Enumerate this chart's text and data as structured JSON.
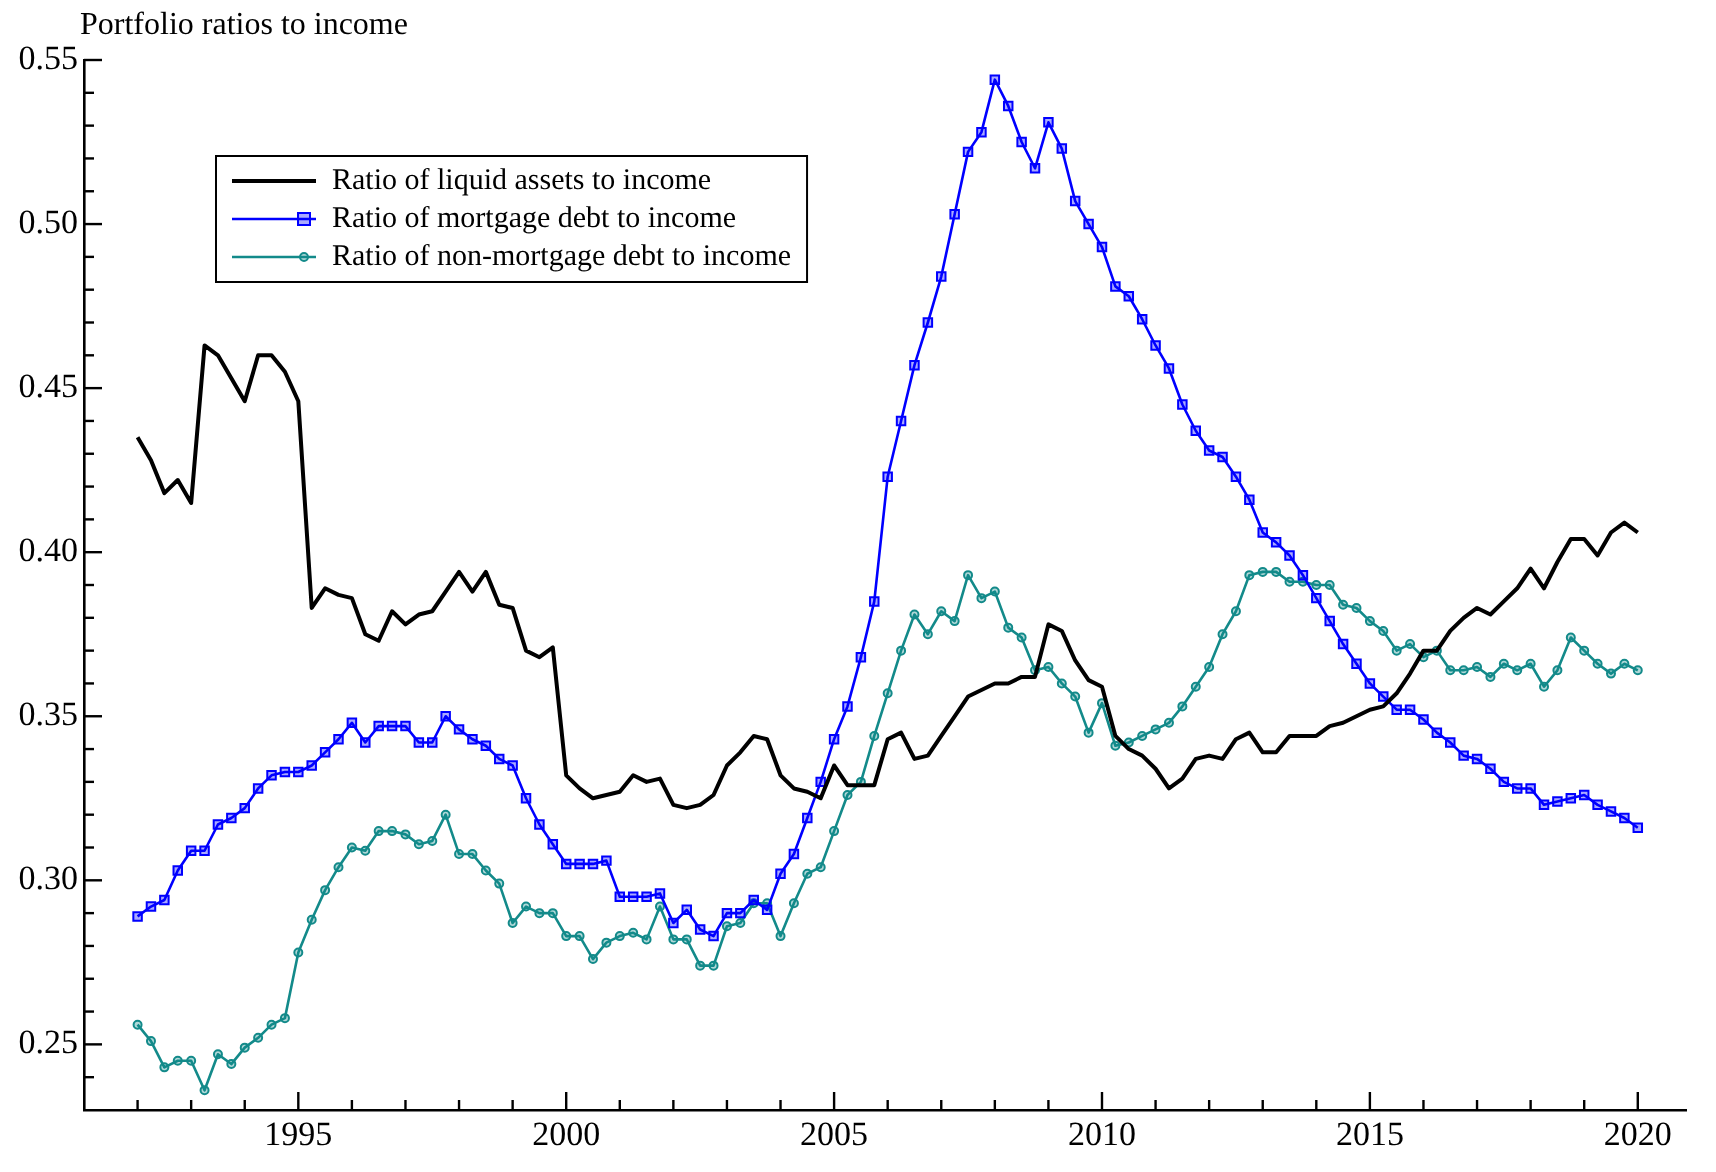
{
  "chart_data": {
    "type": "line",
    "title": "Portfolio ratios to income",
    "x": [
      1992,
      1992.25,
      1992.5,
      1992.75,
      1993,
      1993.25,
      1993.5,
      1993.75,
      1994,
      1994.25,
      1994.5,
      1994.75,
      1995,
      1995.25,
      1995.5,
      1995.75,
      1996,
      1996.25,
      1996.5,
      1996.75,
      1997,
      1997.25,
      1997.5,
      1997.75,
      1998,
      1998.25,
      1998.5,
      1998.75,
      1999,
      1999.25,
      1999.5,
      1999.75,
      2000,
      2000.25,
      2000.5,
      2000.75,
      2001,
      2001.25,
      2001.5,
      2001.75,
      2002,
      2002.25,
      2002.5,
      2002.75,
      2003,
      2003.25,
      2003.5,
      2003.75,
      2004,
      2004.25,
      2004.5,
      2004.75,
      2005,
      2005.25,
      2005.5,
      2005.75,
      2006,
      2006.25,
      2006.5,
      2006.75,
      2007,
      2007.25,
      2007.5,
      2007.75,
      2008,
      2008.25,
      2008.5,
      2008.75,
      2009,
      2009.25,
      2009.5,
      2009.75,
      2010,
      2010.25,
      2010.5,
      2010.75,
      2011,
      2011.25,
      2011.5,
      2011.75,
      2012,
      2012.25,
      2012.5,
      2012.75,
      2013,
      2013.25,
      2013.5,
      2013.75,
      2014,
      2014.25,
      2014.5,
      2014.75,
      2015,
      2015.25,
      2015.5,
      2015.75,
      2016,
      2016.25,
      2016.5,
      2016.75,
      2017,
      2017.25,
      2017.5,
      2017.75,
      2018,
      2018.25,
      2018.5,
      2018.75,
      2019,
      2019.25,
      2019.5,
      2019.75,
      2020
    ],
    "series": [
      {
        "name": "Ratio of liquid assets to income",
        "color": "#000000",
        "marker": "none",
        "values": [
          0.435,
          0.428,
          0.418,
          0.422,
          0.415,
          0.463,
          0.46,
          0.453,
          0.446,
          0.46,
          0.46,
          0.455,
          0.446,
          0.383,
          0.389,
          0.387,
          0.386,
          0.375,
          0.373,
          0.382,
          0.378,
          0.381,
          0.382,
          0.388,
          0.394,
          0.388,
          0.394,
          0.384,
          0.383,
          0.37,
          0.368,
          0.371,
          0.332,
          0.328,
          0.325,
          0.326,
          0.327,
          0.332,
          0.33,
          0.331,
          0.323,
          0.322,
          0.323,
          0.326,
          0.335,
          0.339,
          0.344,
          0.343,
          0.332,
          0.328,
          0.327,
          0.325,
          0.335,
          0.329,
          0.329,
          0.329,
          0.343,
          0.345,
          0.337,
          0.338,
          0.344,
          0.35,
          0.356,
          0.358,
          0.36,
          0.36,
          0.362,
          0.362,
          0.378,
          0.376,
          0.367,
          0.361,
          0.359,
          0.344,
          0.34,
          0.338,
          0.334,
          0.328,
          0.331,
          0.337,
          0.338,
          0.337,
          0.343,
          0.345,
          0.339,
          0.339,
          0.344,
          0.344,
          0.344,
          0.347,
          0.348,
          0.35,
          0.352,
          0.353,
          0.357,
          0.363,
          0.37,
          0.37,
          0.376,
          0.38,
          0.383,
          0.381,
          0.385,
          0.389,
          0.395,
          0.389,
          0.397,
          0.404,
          0.404,
          0.399,
          0.406,
          0.409,
          0.406
        ]
      },
      {
        "name": "Ratio of mortgage debt to income",
        "color": "#0000ff",
        "marker": "square",
        "values": [
          0.289,
          0.292,
          0.294,
          0.303,
          0.309,
          0.309,
          0.317,
          0.319,
          0.322,
          0.328,
          0.332,
          0.333,
          0.333,
          0.335,
          0.339,
          0.343,
          0.348,
          0.342,
          0.347,
          0.347,
          0.347,
          0.342,
          0.342,
          0.35,
          0.346,
          0.343,
          0.341,
          0.337,
          0.335,
          0.325,
          0.317,
          0.311,
          0.305,
          0.305,
          0.305,
          0.306,
          0.295,
          0.295,
          0.295,
          0.296,
          0.287,
          0.291,
          0.285,
          0.283,
          0.29,
          0.29,
          0.294,
          0.291,
          0.302,
          0.308,
          0.319,
          0.33,
          0.343,
          0.353,
          0.368,
          0.385,
          0.423,
          0.44,
          0.457,
          0.47,
          0.484,
          0.503,
          0.522,
          0.528,
          0.544,
          0.536,
          0.525,
          0.517,
          0.531,
          0.523,
          0.507,
          0.5,
          0.493,
          0.481,
          0.478,
          0.471,
          0.463,
          0.456,
          0.445,
          0.437,
          0.431,
          0.429,
          0.423,
          0.416,
          0.406,
          0.403,
          0.399,
          0.393,
          0.386,
          0.379,
          0.372,
          0.366,
          0.36,
          0.356,
          0.352,
          0.352,
          0.349,
          0.345,
          0.342,
          0.338,
          0.337,
          0.334,
          0.33,
          0.328,
          0.328,
          0.323,
          0.324,
          0.325,
          0.326,
          0.323,
          0.321,
          0.319,
          0.316
        ]
      },
      {
        "name": "Ratio of non-mortgage debt to income",
        "color": "#138a8a",
        "marker": "circle",
        "values": [
          0.256,
          0.251,
          0.243,
          0.245,
          0.245,
          0.236,
          0.247,
          0.244,
          0.249,
          0.252,
          0.256,
          0.258,
          0.278,
          0.288,
          0.297,
          0.304,
          0.31,
          0.309,
          0.315,
          0.315,
          0.314,
          0.311,
          0.312,
          0.32,
          0.308,
          0.308,
          0.303,
          0.299,
          0.287,
          0.292,
          0.29,
          0.29,
          0.283,
          0.283,
          0.276,
          0.281,
          0.283,
          0.284,
          0.282,
          0.292,
          0.282,
          0.282,
          0.274,
          0.274,
          0.286,
          0.287,
          0.293,
          0.293,
          0.283,
          0.293,
          0.302,
          0.304,
          0.315,
          0.326,
          0.33,
          0.344,
          0.357,
          0.37,
          0.381,
          0.375,
          0.382,
          0.379,
          0.393,
          0.386,
          0.388,
          0.377,
          0.374,
          0.364,
          0.365,
          0.36,
          0.356,
          0.345,
          0.354,
          0.341,
          0.342,
          0.344,
          0.346,
          0.348,
          0.353,
          0.359,
          0.365,
          0.375,
          0.382,
          0.393,
          0.394,
          0.394,
          0.391,
          0.391,
          0.39,
          0.39,
          0.384,
          0.383,
          0.379,
          0.376,
          0.37,
          0.372,
          0.368,
          0.37,
          0.364,
          0.364,
          0.365,
          0.362,
          0.366,
          0.364,
          0.366,
          0.359,
          0.364,
          0.374,
          0.37,
          0.366,
          0.363,
          0.366,
          0.364
        ]
      }
    ],
    "xlim": [
      1991,
      2020.9
    ],
    "xticks": [
      {
        "value": 1992,
        "label": null
      },
      {
        "value": 1993,
        "label": null
      },
      {
        "value": 1994,
        "label": null
      },
      1995,
      {
        "value": 1996,
        "label": null
      },
      {
        "value": 1997,
        "label": null
      },
      {
        "value": 1998,
        "label": null
      },
      {
        "value": 1999,
        "label": null
      },
      2000,
      {
        "value": 2001,
        "label": null
      },
      {
        "value": 2002,
        "label": null
      },
      {
        "value": 2003,
        "label": null
      },
      {
        "value": 2004,
        "label": null
      },
      2005,
      {
        "value": 2006,
        "label": null
      },
      {
        "value": 2007,
        "label": null
      },
      {
        "value": 2008,
        "label": null
      },
      {
        "value": 2009,
        "label": null
      },
      2010,
      {
        "value": 2011,
        "label": null
      },
      {
        "value": 2012,
        "label": null
      },
      {
        "value": 2013,
        "label": null
      },
      {
        "value": 2014,
        "label": null
      },
      2015,
      {
        "value": 2016,
        "label": null
      },
      {
        "value": 2017,
        "label": null
      },
      {
        "value": 2018,
        "label": null
      },
      {
        "value": 2019,
        "label": null
      },
      2020
    ],
    "ylim": [
      0.23,
      0.55
    ],
    "yticks": [
      {
        "value": 0.24,
        "label": null
      },
      0.25,
      {
        "value": 0.26,
        "label": null
      },
      {
        "value": 0.27,
        "label": null
      },
      {
        "value": 0.28,
        "label": null
      },
      {
        "value": 0.29,
        "label": null
      },
      {
        "value": 0.3,
        "label": "0.30"
      },
      {
        "value": 0.31,
        "label": null
      },
      {
        "value": 0.32,
        "label": null
      },
      {
        "value": 0.33,
        "label": null
      },
      {
        "value": 0.34,
        "label": null
      },
      0.35,
      {
        "value": 0.36,
        "label": null
      },
      {
        "value": 0.37,
        "label": null
      },
      {
        "value": 0.38,
        "label": null
      },
      {
        "value": 0.39,
        "label": null
      },
      {
        "value": 0.4,
        "label": "0.40"
      },
      {
        "value": 0.41,
        "label": null
      },
      {
        "value": 0.42,
        "label": null
      },
      {
        "value": 0.43,
        "label": null
      },
      {
        "value": 0.44,
        "label": null
      },
      0.45,
      {
        "value": 0.46,
        "label": null
      },
      {
        "value": 0.47,
        "label": null
      },
      {
        "value": 0.48,
        "label": null
      },
      {
        "value": 0.49,
        "label": null
      },
      {
        "value": 0.5,
        "label": "0.50"
      },
      {
        "value": 0.51,
        "label": null
      },
      {
        "value": 0.52,
        "label": null
      },
      {
        "value": 0.53,
        "label": null
      },
      {
        "value": 0.54,
        "label": null
      },
      0.55
    ],
    "grid": false,
    "legend": "top left"
  }
}
